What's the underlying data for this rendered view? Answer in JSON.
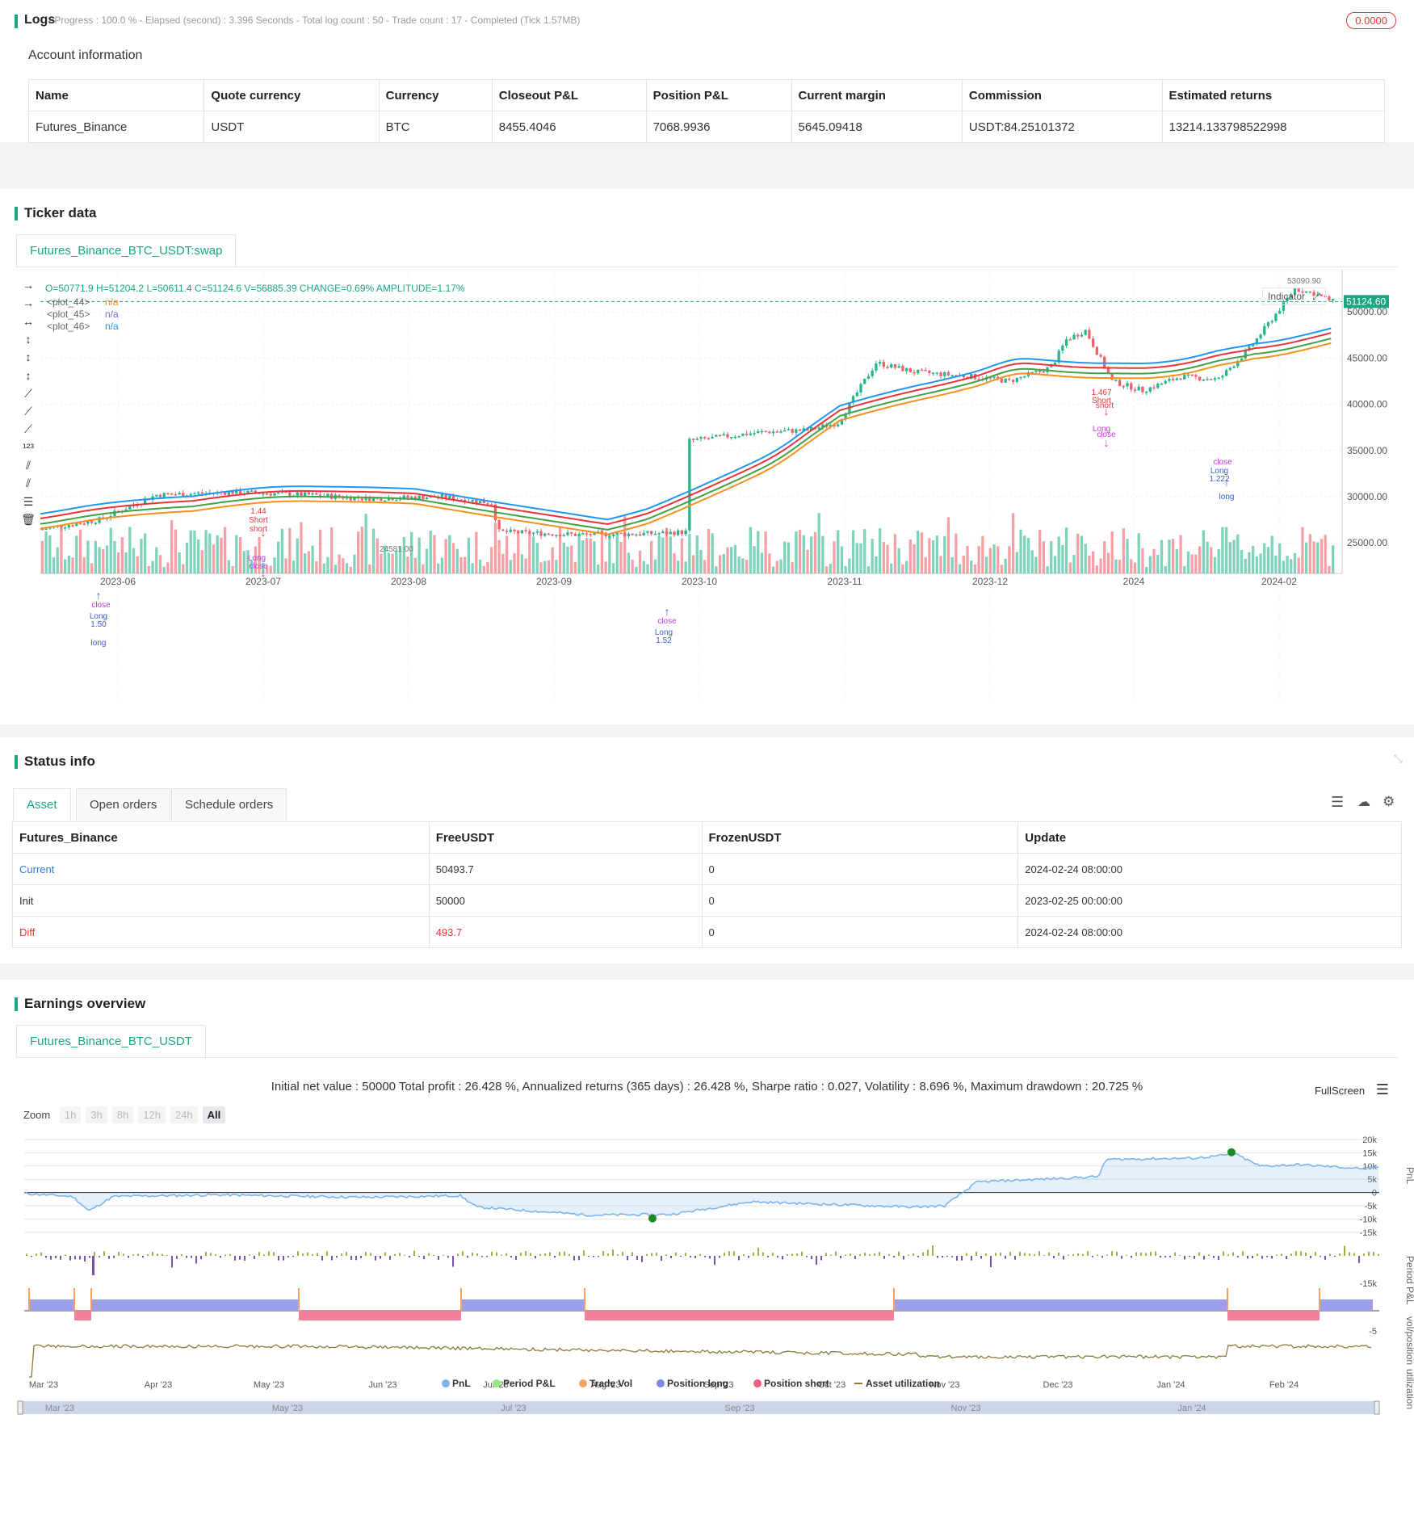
{
  "logs": {
    "title": "Logs",
    "status_line": "- Progress : 100.0 % - Elapsed (second) : 3.396  Seconds - Total log count : 50 - Trade count : 17 - Completed (Tick 1.57MB)",
    "badge": "0.0000"
  },
  "account": {
    "title": "Account information",
    "headers": [
      "Name",
      "Quote currency",
      "Currency",
      "Closeout P&L",
      "Position P&L",
      "Current margin",
      "Commission",
      "Estimated returns"
    ],
    "row": [
      "Futures_Binance",
      "USDT",
      "BTC",
      "8455.4046",
      "7068.9936",
      "5645.09418",
      "USDT:84.25101372",
      "13214.133798522998"
    ]
  },
  "ticker": {
    "title": "Ticker data",
    "tab": "Futures_Binance_BTC_USDT:swap",
    "ohlc": "O=50771.9 H=51204.2 L=50611.4 C=51124.6 V=56885.39 CHANGE=0.69% AMPLITUDE=1.17%",
    "legend": [
      {
        "name": "<plot_44>",
        "value": "n/a",
        "color": "#f5901e"
      },
      {
        "name": "<plot_45>",
        "value": "n/a",
        "color": "#7b68ee"
      },
      {
        "name": "<plot_46>",
        "value": "n/a",
        "color": "#2196f3"
      }
    ],
    "indicator_btn": "Indicator",
    "price_ticks": [
      "55000.00",
      "50000.00",
      "45000.00",
      "40000.00",
      "35000.00",
      "30000.00",
      "25000.00"
    ],
    "current_price": "51124.60",
    "high_label": "53090.90",
    "low_label": "24581.00",
    "months": [
      "2023-06",
      "2023-07",
      "2023-08",
      "2023-09",
      "2023-10",
      "2023-11",
      "2023-12",
      "2024",
      "2024-02"
    ],
    "annotations": [
      {
        "text": "1.44",
        "color": "#e03a3a"
      },
      {
        "text": "Short",
        "color": "#e03a3a"
      },
      {
        "text": "short",
        "color": "#e03a3a"
      },
      {
        "text": "Long",
        "color": "#c03bd8"
      },
      {
        "text": "close",
        "color": "#c03bd8"
      },
      {
        "text": "close",
        "color": "#c03bd8"
      },
      {
        "text": "Long",
        "color": "#3b5bd8"
      },
      {
        "text": "1.50",
        "color": "#3b5bd8"
      },
      {
        "text": "long",
        "color": "#3b5bd8"
      },
      {
        "text": "close",
        "color": "#c03bd8"
      },
      {
        "text": "Long",
        "color": "#3b5bd8"
      },
      {
        "text": "1.52",
        "color": "#3b5bd8"
      },
      {
        "text": "1.467",
        "color": "#e03a3a"
      },
      {
        "text": "Short",
        "color": "#e03a3a"
      },
      {
        "text": "short",
        "color": "#e03a3a"
      },
      {
        "text": "Long",
        "color": "#c03bd8"
      },
      {
        "text": "close",
        "color": "#c03bd8"
      },
      {
        "text": "close",
        "color": "#c03bd8"
      },
      {
        "text": "Long",
        "color": "#3b5bd8"
      },
      {
        "text": "1.222",
        "color": "#3b5bd8"
      },
      {
        "text": "long",
        "color": "#3b5bd8"
      }
    ]
  },
  "status": {
    "title": "Status info",
    "tabs": [
      "Asset",
      "Open orders",
      "Schedule orders"
    ],
    "headers": [
      "Futures_Binance",
      "FreeUSDT",
      "FrozenUSDT",
      "Update"
    ],
    "rows": [
      [
        "Current",
        "50493.7",
        "0",
        "2024-02-24 08:00:00"
      ],
      [
        "Init",
        "50000",
        "0",
        "2023-02-25 00:00:00"
      ],
      [
        "Diff",
        "493.7",
        "0",
        "2024-02-24 08:00:00"
      ]
    ]
  },
  "earnings": {
    "title": "Earnings overview",
    "tab": "Futures_Binance_BTC_USDT",
    "summary": "Initial net value : 50000  Total profit : 26.428 %, Annualized returns (365 days) : 26.428 %, Sharpe ratio : 0.027, Volatility : 8.696 %, Maximum drawdown : 20.725 %",
    "fullscreen": "FullScreen",
    "zoom_label": "Zoom",
    "zoom_buttons": [
      "1h",
      "3h",
      "8h",
      "12h",
      "24h",
      "All"
    ],
    "pnl_ticks": [
      "20k",
      "15k",
      "10k",
      "5k",
      "0",
      "-5k",
      "-10k",
      "-15k"
    ],
    "axis_titles": [
      "PnL",
      "Period P&L",
      "vol/position",
      "utilization"
    ],
    "period_tick": "-15k",
    "vol_tick": "-5",
    "months": [
      "Mar '23",
      "Apr '23",
      "May '23",
      "Jun '23",
      "Jul '23",
      "Aug '23",
      "Sep '23",
      "Oct '23",
      "Nov '23",
      "Dec '23",
      "Jan '24",
      "Feb '24"
    ],
    "navigator_months": [
      "Mar '23",
      "May '23",
      "Jul '23",
      "Sep '23",
      "Nov '23",
      "Jan '24"
    ],
    "legend": [
      {
        "name": "PnL",
        "color": "#7cb5ec"
      },
      {
        "name": "Period P&L",
        "color": "#90ed7d"
      },
      {
        "name": "Trade Vol",
        "color": "#f7a35c"
      },
      {
        "name": "Position long",
        "color": "#8085e9"
      },
      {
        "name": "Position short",
        "color": "#f15c80"
      },
      {
        "name": "Asset utilization",
        "color": "#8d7a3a"
      }
    ]
  }
}
